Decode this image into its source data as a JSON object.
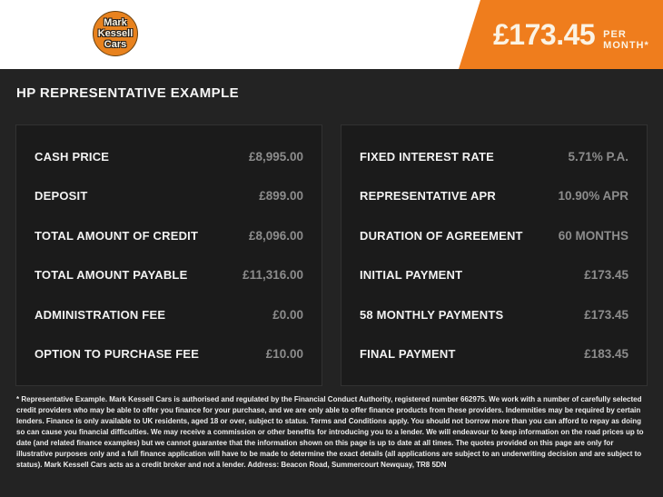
{
  "colors": {
    "accent_orange": "#EF7D1D",
    "logo_orange": "#E8821E",
    "page_background": "#232323",
    "panel_background": "#1B1B1B",
    "panel_border": "#323232",
    "label_text": "#F2F2F2",
    "value_text": "#8C8C8C",
    "badge_text": "#FBF3E4"
  },
  "header": {
    "logo": {
      "line1": "Mark",
      "line2": "Kessell",
      "line3": "Cars"
    },
    "price_badge": {
      "amount": "£173.45",
      "suffix": "PER MONTH*"
    }
  },
  "title": "HP REPRESENTATIVE EXAMPLE",
  "panels": {
    "left": {
      "rows": [
        {
          "label": "CASH PRICE",
          "value": "£8,995.00"
        },
        {
          "label": "DEPOSIT",
          "value": "£899.00"
        },
        {
          "label": "TOTAL AMOUNT OF CREDIT",
          "value": "£8,096.00"
        },
        {
          "label": "TOTAL AMOUNT PAYABLE",
          "value": "£11,316.00"
        },
        {
          "label": "ADMINISTRATION FEE",
          "value": "£0.00"
        },
        {
          "label": "OPTION TO PURCHASE FEE",
          "value": "£10.00"
        }
      ]
    },
    "right": {
      "rows": [
        {
          "label": "FIXED INTEREST RATE",
          "value": "5.71% P.A."
        },
        {
          "label": "REPRESENTATIVE APR",
          "value": "10.90% APR"
        },
        {
          "label": "DURATION OF AGREEMENT",
          "value": "60 MONTHS"
        },
        {
          "label": "INITIAL PAYMENT",
          "value": "£173.45"
        },
        {
          "label": "58 MONTHLY PAYMENTS",
          "value": "£173.45"
        },
        {
          "label": "FINAL PAYMENT",
          "value": "£183.45"
        }
      ]
    }
  },
  "disclaimer": "* Representative Example. Mark Kessell Cars is authorised and regulated by the Financial Conduct Authority, registered number 662975. We work with a number of carefully selected credit providers who may be able to offer you finance for your purchase, and we are only able to offer finance products from these providers. Indemnities may be required by certain lenders. Finance is only available to UK residents, aged 18 or over, subject to status. Terms and Conditions apply. You should not borrow more than you can afford to repay as doing so can cause you financial difficulties. We may receive a commission or other benefits for introducing you to a lender. We will endeavour to keep information on the road prices up to date (and related finance examples) but we cannot guarantee that the information shown on this page is up to date at all times. The quotes provided on this page are only for illustrative purposes only and a full finance application will have to be made to determine the exact details (all applications are subject to an underwriting decision and are subject to status). Mark Kessell Cars acts as a credit broker and not a lender. Address: Beacon Road, Summercourt Newquay, TR8 5DN"
}
